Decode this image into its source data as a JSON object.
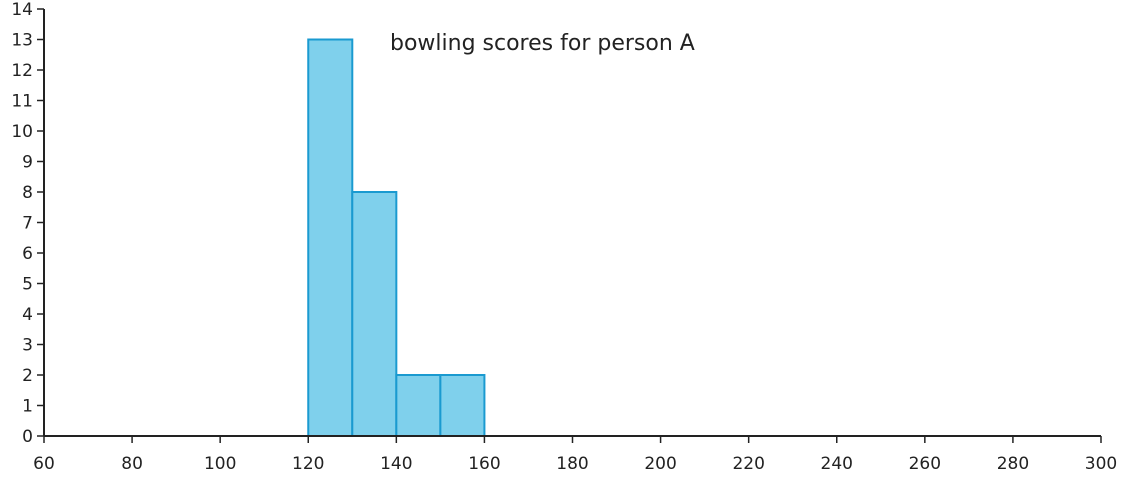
{
  "chart_data": {
    "type": "bar",
    "title": "bowling scores for person A",
    "xlabel": "",
    "ylabel": "",
    "bins": [
      {
        "start": 120,
        "end": 130,
        "count": 13
      },
      {
        "start": 130,
        "end": 140,
        "count": 8
      },
      {
        "start": 140,
        "end": 150,
        "count": 2
      },
      {
        "start": 150,
        "end": 160,
        "count": 2
      }
    ],
    "xlim": [
      60,
      300
    ],
    "ylim": [
      0,
      14
    ],
    "x_ticks": [
      "60",
      "80",
      "100",
      "120",
      "140",
      "160",
      "180",
      "200",
      "220",
      "240",
      "260",
      "280",
      "300"
    ],
    "y_ticks": [
      "0",
      "1",
      "2",
      "3",
      "4",
      "5",
      "6",
      "7",
      "8",
      "9",
      "10",
      "11",
      "12",
      "13",
      "14"
    ],
    "grid": false,
    "colors": {
      "bar_fill": "#7fd0ec",
      "bar_stroke": "#1a9ad0",
      "axis": "#222222"
    }
  }
}
